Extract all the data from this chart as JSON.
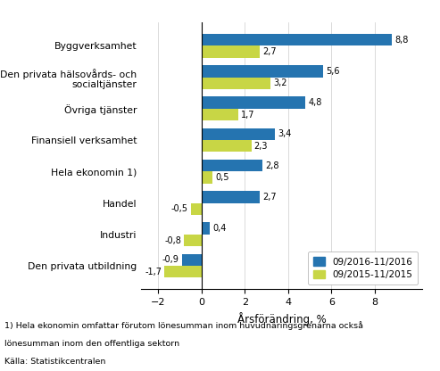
{
  "categories": [
    "Den privata utbildning",
    "Industri",
    "Handel",
    "Hela ekonomin 1)",
    "Finansiell verksamhet",
    "Övriga tjänster",
    "Den privata hälsovårds- och\nsocialtjänster",
    "Byggverksamhet"
  ],
  "values_2016": [
    -0.9,
    0.4,
    2.7,
    2.8,
    3.4,
    4.8,
    5.6,
    8.8
  ],
  "values_2015": [
    -1.7,
    -0.8,
    -0.5,
    0.5,
    2.3,
    1.7,
    3.2,
    2.7
  ],
  "color_2016": "#2574B0",
  "color_2015": "#C8D645",
  "xlabel": "Årsförändring, %",
  "legend_2016": "09/2016-11/2016",
  "legend_2015": "09/2015-11/2015",
  "xlim": [
    -2.8,
    10.2
  ],
  "xticks": [
    -2,
    0,
    2,
    4,
    6,
    8
  ],
  "footnote1": "1) Hela ekonomin omfattar förutom lönesumman inom huvudnäringsgrenarna också",
  "footnote2": "lönesumman inom den offentliga sektorn",
  "footnote3": "Källa: Statistikcentralen",
  "bar_height": 0.38
}
